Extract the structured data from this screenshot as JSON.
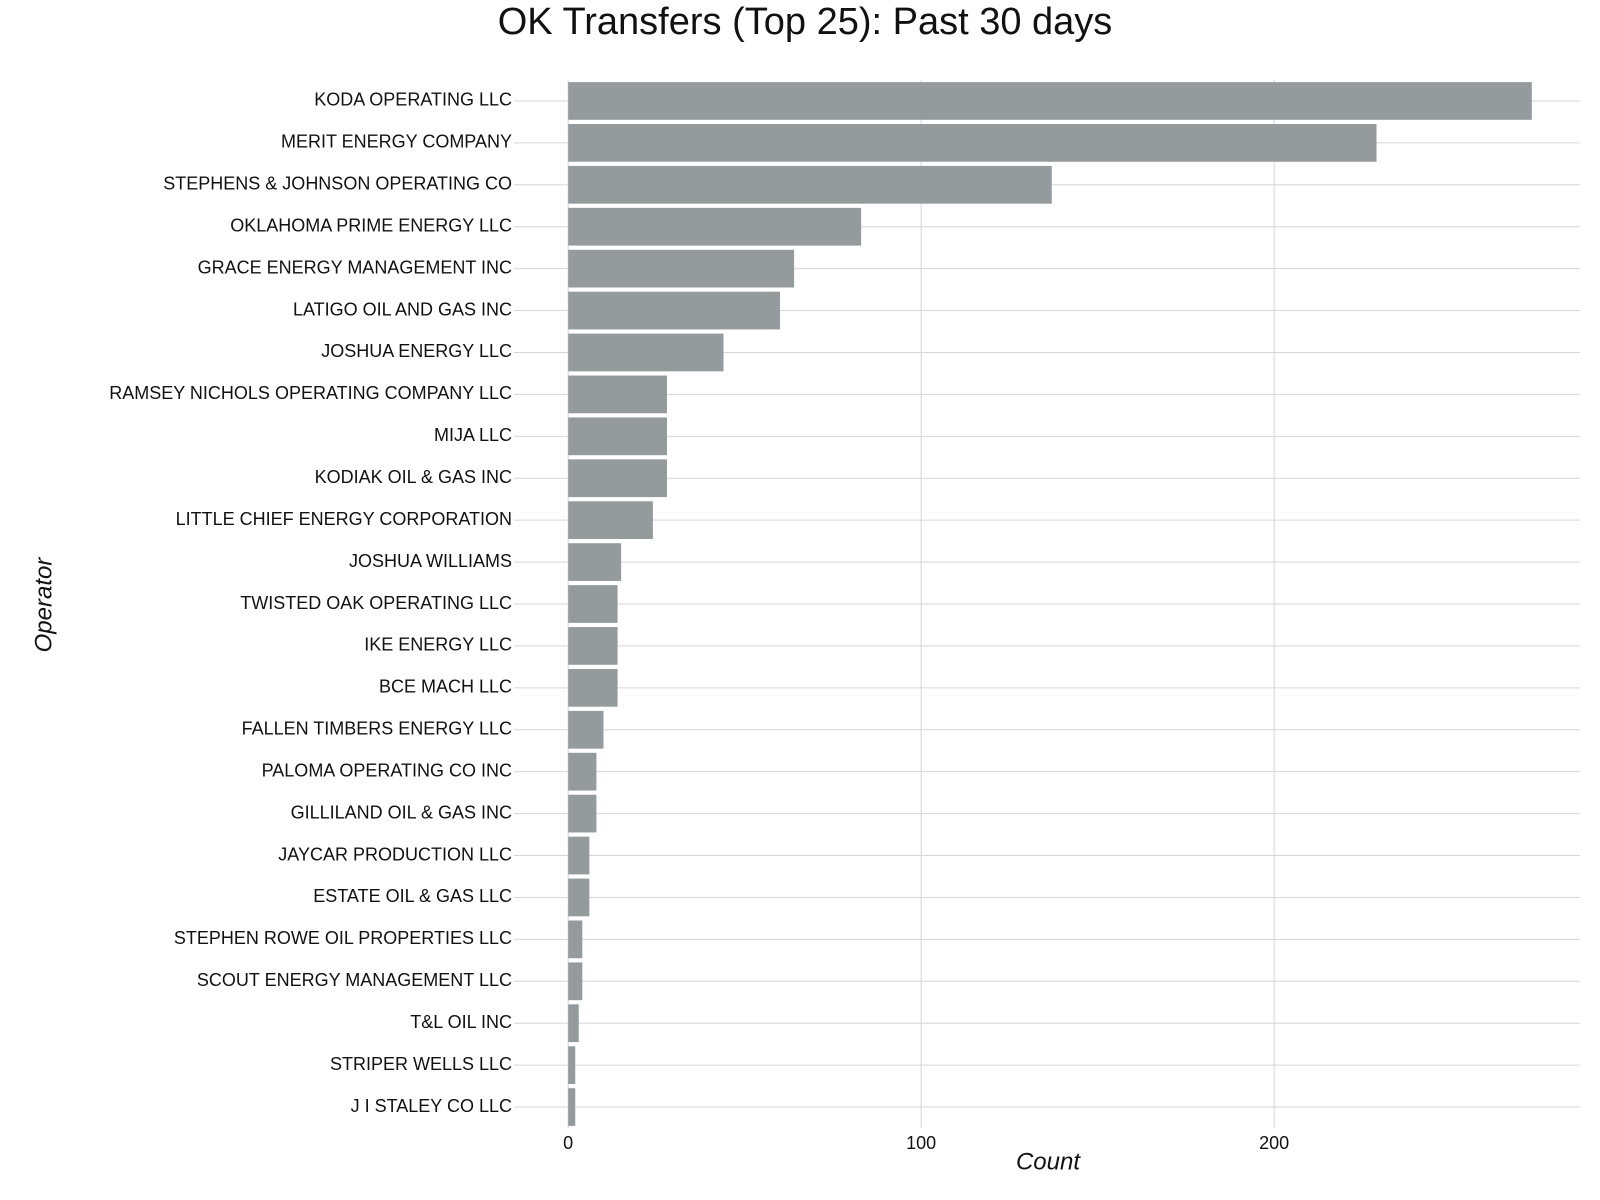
{
  "chart_data": {
    "type": "bar",
    "orientation": "horizontal",
    "title": "OK Transfers (Top 25): Past 30 days",
    "x_label": "Count",
    "y_label": "Operator",
    "categories": [
      "KODA OPERATING LLC",
      "MERIT ENERGY COMPANY",
      "STEPHENS & JOHNSON OPERATING CO",
      "OKLAHOMA PRIME ENERGY LLC",
      "GRACE ENERGY MANAGEMENT INC",
      "LATIGO OIL AND GAS INC",
      "JOSHUA ENERGY LLC",
      "RAMSEY NICHOLS OPERATING COMPANY LLC",
      "MIJA LLC",
      "KODIAK OIL & GAS INC",
      "LITTLE CHIEF ENERGY CORPORATION",
      "JOSHUA WILLIAMS",
      "TWISTED OAK OPERATING LLC",
      "IKE ENERGY LLC",
      "BCE MACH LLC",
      "FALLEN TIMBERS ENERGY LLC",
      "PALOMA OPERATING CO INC",
      "GILLILAND OIL & GAS INC",
      "JAYCAR PRODUCTION LLC",
      "ESTATE OIL & GAS LLC",
      "STEPHEN ROWE OIL PROPERTIES LLC",
      "SCOUT ENERGY MANAGEMENT LLC",
      "T&L OIL INC",
      "STRIPER WELLS LLC",
      "J I STALEY CO LLC"
    ],
    "values": [
      273,
      229,
      137,
      83,
      64,
      60,
      44,
      28,
      28,
      28,
      24,
      15,
      14,
      14,
      14,
      10,
      8,
      8,
      6,
      6,
      4,
      4,
      3,
      2,
      2
    ],
    "color": "#959b9d",
    "xlim": [
      -13.65,
      286.65
    ],
    "xticks": [
      0,
      100,
      200
    ],
    "grid": true
  }
}
